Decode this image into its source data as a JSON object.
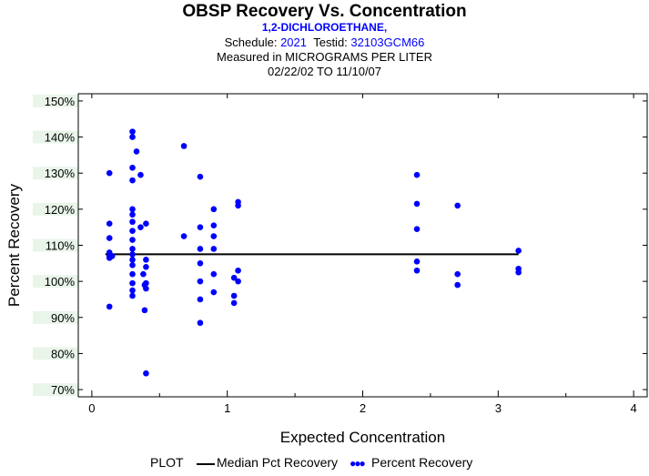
{
  "header": {
    "title": "OBSP Recovery Vs. Concentration",
    "analyte": "1,2-DICHLOROETHANE,",
    "schedule_label": "Schedule:",
    "schedule_value": "2021",
    "testid_label": "Testid:",
    "testid_value": "32103GCM66",
    "measured": "Measured in  MICROGRAMS PER LITER",
    "date_range": "02/22/02 TO 11/10/07"
  },
  "legend": {
    "plot_label": "PLOT",
    "median_label": "Median Pct Recovery",
    "points_label": "Percent Recovery"
  },
  "colors": {
    "points": "#0000ff",
    "median": "#000000",
    "band": "#eaf5ea"
  },
  "chart_data": {
    "type": "scatter",
    "xlabel": "Expected Concentration",
    "ylabel": "Percent Recovery",
    "xlim": [
      -0.1,
      4.1
    ],
    "ylim": [
      68,
      152
    ],
    "x_ticks": [
      0,
      1,
      2,
      3,
      4
    ],
    "x_tick_labels": [
      "0",
      "1",
      "2",
      "3",
      "4"
    ],
    "y_ticks": [
      70,
      80,
      90,
      100,
      110,
      120,
      130,
      140,
      150
    ],
    "y_tick_labels": [
      "70%",
      "80%",
      "90%",
      "100%",
      "110%",
      "120%",
      "130%",
      "140%",
      "150%"
    ],
    "median": {
      "value": 107.5,
      "x_start": 0.1,
      "x_end": 3.15
    },
    "series": [
      {
        "name": "Percent Recovery",
        "points": [
          [
            0.13,
            93
          ],
          [
            0.13,
            106.5
          ],
          [
            0.13,
            107
          ],
          [
            0.13,
            108
          ],
          [
            0.13,
            112
          ],
          [
            0.13,
            116
          ],
          [
            0.13,
            130
          ],
          [
            0.15,
            107
          ],
          [
            0.3,
            96
          ],
          [
            0.3,
            97.5
          ],
          [
            0.3,
            99.5
          ],
          [
            0.3,
            102
          ],
          [
            0.3,
            104.5
          ],
          [
            0.3,
            106
          ],
          [
            0.3,
            107.5
          ],
          [
            0.3,
            109
          ],
          [
            0.3,
            111.5
          ],
          [
            0.3,
            114
          ],
          [
            0.3,
            116.5
          ],
          [
            0.3,
            118.5
          ],
          [
            0.3,
            120
          ],
          [
            0.3,
            128
          ],
          [
            0.3,
            131.5
          ],
          [
            0.3,
            140
          ],
          [
            0.3,
            141.5
          ],
          [
            0.33,
            136
          ],
          [
            0.36,
            129.5
          ],
          [
            0.36,
            115
          ],
          [
            0.38,
            102
          ],
          [
            0.39,
            99
          ],
          [
            0.39,
            92
          ],
          [
            0.4,
            74.5
          ],
          [
            0.4,
            98
          ],
          [
            0.4,
            99.5
          ],
          [
            0.4,
            104
          ],
          [
            0.4,
            106
          ],
          [
            0.4,
            116
          ],
          [
            0.68,
            112.5
          ],
          [
            0.68,
            137.5
          ],
          [
            0.8,
            88.5
          ],
          [
            0.8,
            95
          ],
          [
            0.8,
            100
          ],
          [
            0.8,
            105
          ],
          [
            0.8,
            109
          ],
          [
            0.8,
            115
          ],
          [
            0.8,
            129
          ],
          [
            0.9,
            97
          ],
          [
            0.9,
            102
          ],
          [
            0.9,
            109
          ],
          [
            0.9,
            112.5
          ],
          [
            0.9,
            115.5
          ],
          [
            0.9,
            120
          ],
          [
            1.05,
            94
          ],
          [
            1.05,
            96
          ],
          [
            1.05,
            101
          ],
          [
            1.08,
            100
          ],
          [
            1.08,
            103
          ],
          [
            1.08,
            121
          ],
          [
            1.08,
            122
          ],
          [
            2.4,
            103
          ],
          [
            2.4,
            105.5
          ],
          [
            2.4,
            114.5
          ],
          [
            2.4,
            121.5
          ],
          [
            2.4,
            129.5
          ],
          [
            2.7,
            99
          ],
          [
            2.7,
            102
          ],
          [
            2.7,
            121
          ],
          [
            3.15,
            102.5
          ],
          [
            3.15,
            103.5
          ],
          [
            3.15,
            108.5
          ]
        ]
      }
    ]
  }
}
